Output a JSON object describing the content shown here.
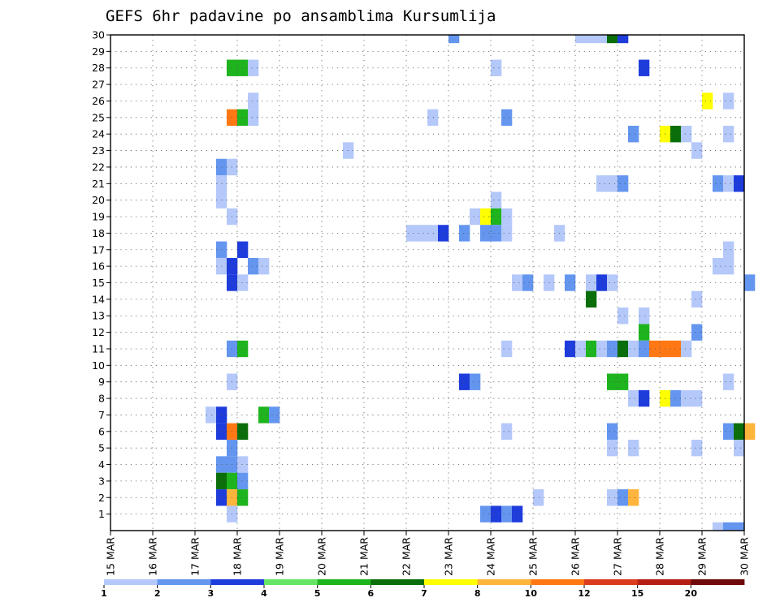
{
  "chart_data": {
    "type": "heatmap",
    "title": "GEFS 6hr padavine po ansamblima Kursumlija",
    "x_labels": [
      "15 MAR",
      "16 MAR",
      "17 MAR",
      "18 MAR",
      "19 MAR",
      "20 MAR",
      "21 MAR",
      "22 MAR",
      "23 MAR",
      "24 MAR",
      "25 MAR",
      "26 MAR",
      "27 MAR",
      "28 MAR",
      "29 MAR",
      "30 MAR"
    ],
    "x_range": [
      0,
      60
    ],
    "steps_per_day": 4,
    "y_labels": [
      "1",
      "2",
      "3",
      "4",
      "5",
      "6",
      "7",
      "8",
      "9",
      "10",
      "11",
      "12",
      "13",
      "14",
      "15",
      "16",
      "17",
      "18",
      "19",
      "20",
      "21",
      "22",
      "23",
      "24",
      "25",
      "26",
      "27",
      "28",
      "29",
      "30"
    ],
    "y_range": [
      0,
      30
    ],
    "grid": true,
    "legend": {
      "position": "bottom",
      "labels": [
        "1",
        "2",
        "3",
        "4",
        "5",
        "6",
        "7",
        "8",
        "10",
        "12",
        "15",
        "20"
      ],
      "colors": [
        "#b4c8fa",
        "#6496f0",
        "#1e3cdc",
        "#64e664",
        "#1eb41e",
        "#0a6e0a",
        "#ffff00",
        "#ffb43c",
        "#ff7814",
        "#dc3c1e",
        "#b41e14",
        "#6e0a0a"
      ]
    },
    "cells": [
      {
        "member": 30,
        "step": 32,
        "v": 2
      },
      {
        "member": 30,
        "step": 44,
        "v": 1
      },
      {
        "member": 30,
        "step": 45,
        "v": 1
      },
      {
        "member": 30,
        "step": 46,
        "v": 1
      },
      {
        "member": 30,
        "step": 47,
        "v": 6
      },
      {
        "member": 30,
        "step": 48,
        "v": 3
      },
      {
        "member": 28,
        "step": 11,
        "v": 5
      },
      {
        "member": 28,
        "step": 12,
        "v": 5
      },
      {
        "member": 28,
        "step": 13,
        "v": 1
      },
      {
        "member": 28,
        "step": 36,
        "v": 1
      },
      {
        "member": 28,
        "step": 50,
        "v": 3
      },
      {
        "member": 26,
        "step": 13,
        "v": 1
      },
      {
        "member": 26,
        "step": 56,
        "v": 7
      },
      {
        "member": 26,
        "step": 58,
        "v": 1
      },
      {
        "member": 25,
        "step": 11,
        "v": 10
      },
      {
        "member": 25,
        "step": 12,
        "v": 5
      },
      {
        "member": 25,
        "step": 13,
        "v": 1
      },
      {
        "member": 25,
        "step": 30,
        "v": 1
      },
      {
        "member": 25,
        "step": 37,
        "v": 2
      },
      {
        "member": 24,
        "step": 49,
        "v": 2
      },
      {
        "member": 24,
        "step": 52,
        "v": 7
      },
      {
        "member": 24,
        "step": 53,
        "v": 6
      },
      {
        "member": 24,
        "step": 54,
        "v": 1
      },
      {
        "member": 24,
        "step": 58,
        "v": 1
      },
      {
        "member": 23,
        "step": 22,
        "v": 1
      },
      {
        "member": 23,
        "step": 55,
        "v": 1
      },
      {
        "member": 22,
        "step": 10,
        "v": 2
      },
      {
        "member": 22,
        "step": 11,
        "v": 1
      },
      {
        "member": 21,
        "step": 10,
        "v": 1
      },
      {
        "member": 21,
        "step": 46,
        "v": 1
      },
      {
        "member": 21,
        "step": 47,
        "v": 1
      },
      {
        "member": 21,
        "step": 48,
        "v": 2
      },
      {
        "member": 21,
        "step": 57,
        "v": 2
      },
      {
        "member": 21,
        "step": 58,
        "v": 1
      },
      {
        "member": 21,
        "step": 59,
        "v": 3
      },
      {
        "member": 20,
        "step": 10,
        "v": 1
      },
      {
        "member": 20,
        "step": 36,
        "v": 1
      },
      {
        "member": 19,
        "step": 11,
        "v": 1
      },
      {
        "member": 19,
        "step": 34,
        "v": 1
      },
      {
        "member": 19,
        "step": 35,
        "v": 7
      },
      {
        "member": 19,
        "step": 36,
        "v": 5
      },
      {
        "member": 19,
        "step": 37,
        "v": 1
      },
      {
        "member": 18,
        "step": 28,
        "v": 1
      },
      {
        "member": 18,
        "step": 29,
        "v": 1
      },
      {
        "member": 18,
        "step": 30,
        "v": 1
      },
      {
        "member": 18,
        "step": 31,
        "v": 3
      },
      {
        "member": 18,
        "step": 33,
        "v": 2
      },
      {
        "member": 18,
        "step": 35,
        "v": 2
      },
      {
        "member": 18,
        "step": 36,
        "v": 2
      },
      {
        "member": 18,
        "step": 37,
        "v": 1
      },
      {
        "member": 18,
        "step": 42,
        "v": 1
      },
      {
        "member": 17,
        "step": 10,
        "v": 2
      },
      {
        "member": 17,
        "step": 12,
        "v": 3
      },
      {
        "member": 17,
        "step": 58,
        "v": 1
      },
      {
        "member": 16,
        "step": 10,
        "v": 1
      },
      {
        "member": 16,
        "step": 11,
        "v": 3
      },
      {
        "member": 16,
        "step": 13,
        "v": 2
      },
      {
        "member": 16,
        "step": 14,
        "v": 1
      },
      {
        "member": 16,
        "step": 57,
        "v": 1
      },
      {
        "member": 16,
        "step": 58,
        "v": 1
      },
      {
        "member": 15,
        "step": 11,
        "v": 3
      },
      {
        "member": 15,
        "step": 12,
        "v": 1
      },
      {
        "member": 15,
        "step": 38,
        "v": 1
      },
      {
        "member": 15,
        "step": 39,
        "v": 2
      },
      {
        "member": 15,
        "step": 41,
        "v": 1
      },
      {
        "member": 15,
        "step": 43,
        "v": 2
      },
      {
        "member": 15,
        "step": 45,
        "v": 1
      },
      {
        "member": 15,
        "step": 46,
        "v": 3
      },
      {
        "member": 15,
        "step": 47,
        "v": 1
      },
      {
        "member": 15,
        "step": 60,
        "v": 2
      },
      {
        "member": 14,
        "step": 45,
        "v": 6
      },
      {
        "member": 14,
        "step": 55,
        "v": 1
      },
      {
        "member": 13,
        "step": 48,
        "v": 1
      },
      {
        "member": 13,
        "step": 50,
        "v": 1
      },
      {
        "member": 12,
        "step": 50,
        "v": 5
      },
      {
        "member": 12,
        "step": 55,
        "v": 2
      },
      {
        "member": 11,
        "step": 11,
        "v": 2
      },
      {
        "member": 11,
        "step": 12,
        "v": 5
      },
      {
        "member": 11,
        "step": 37,
        "v": 1
      },
      {
        "member": 11,
        "step": 43,
        "v": 3
      },
      {
        "member": 11,
        "step": 44,
        "v": 1
      },
      {
        "member": 11,
        "step": 45,
        "v": 5
      },
      {
        "member": 11,
        "step": 46,
        "v": 1
      },
      {
        "member": 11,
        "step": 47,
        "v": 2
      },
      {
        "member": 11,
        "step": 48,
        "v": 6
      },
      {
        "member": 11,
        "step": 49,
        "v": 1
      },
      {
        "member": 11,
        "step": 50,
        "v": 2
      },
      {
        "member": 11,
        "step": 51,
        "v": 10
      },
      {
        "member": 11,
        "step": 52,
        "v": 10
      },
      {
        "member": 11,
        "step": 53,
        "v": 10
      },
      {
        "member": 11,
        "step": 54,
        "v": 1
      },
      {
        "member": 9,
        "step": 11,
        "v": 1
      },
      {
        "member": 9,
        "step": 33,
        "v": 3
      },
      {
        "member": 9,
        "step": 34,
        "v": 2
      },
      {
        "member": 9,
        "step": 47,
        "v": 5
      },
      {
        "member": 9,
        "step": 48,
        "v": 5
      },
      {
        "member": 9,
        "step": 58,
        "v": 1
      },
      {
        "member": 8,
        "step": 49,
        "v": 1
      },
      {
        "member": 8,
        "step": 50,
        "v": 3
      },
      {
        "member": 8,
        "step": 52,
        "v": 7
      },
      {
        "member": 8,
        "step": 53,
        "v": 2
      },
      {
        "member": 8,
        "step": 54,
        "v": 1
      },
      {
        "member": 8,
        "step": 55,
        "v": 1
      },
      {
        "member": 7,
        "step": 9,
        "v": 1
      },
      {
        "member": 7,
        "step": 10,
        "v": 3
      },
      {
        "member": 7,
        "step": 14,
        "v": 5
      },
      {
        "member": 7,
        "step": 15,
        "v": 2
      },
      {
        "member": 6,
        "step": 10,
        "v": 3
      },
      {
        "member": 6,
        "step": 11,
        "v": 10
      },
      {
        "member": 6,
        "step": 12,
        "v": 6
      },
      {
        "member": 6,
        "step": 37,
        "v": 1
      },
      {
        "member": 6,
        "step": 47,
        "v": 2
      },
      {
        "member": 6,
        "step": 58,
        "v": 2
      },
      {
        "member": 6,
        "step": 59,
        "v": 6
      },
      {
        "member": 6,
        "step": 60,
        "v": 8
      },
      {
        "member": 5,
        "step": 11,
        "v": 2
      },
      {
        "member": 5,
        "step": 47,
        "v": 1
      },
      {
        "member": 5,
        "step": 49,
        "v": 1
      },
      {
        "member": 5,
        "step": 55,
        "v": 1
      },
      {
        "member": 5,
        "step": 59,
        "v": 1
      },
      {
        "member": 4,
        "step": 10,
        "v": 2
      },
      {
        "member": 4,
        "step": 11,
        "v": 2
      },
      {
        "member": 4,
        "step": 12,
        "v": 1
      },
      {
        "member": 3,
        "step": 10,
        "v": 6
      },
      {
        "member": 3,
        "step": 11,
        "v": 5
      },
      {
        "member": 3,
        "step": 12,
        "v": 2
      },
      {
        "member": 2,
        "step": 10,
        "v": 3
      },
      {
        "member": 2,
        "step": 11,
        "v": 8
      },
      {
        "member": 2,
        "step": 12,
        "v": 5
      },
      {
        "member": 2,
        "step": 40,
        "v": 1
      },
      {
        "member": 2,
        "step": 47,
        "v": 1
      },
      {
        "member": 2,
        "step": 48,
        "v": 2
      },
      {
        "member": 2,
        "step": 49,
        "v": 8
      },
      {
        "member": 1,
        "step": 11,
        "v": 1
      },
      {
        "member": 1,
        "step": 35,
        "v": 2
      },
      {
        "member": 1,
        "step": 36,
        "v": 3
      },
      {
        "member": 1,
        "step": 37,
        "v": 2
      },
      {
        "member": 1,
        "step": 38,
        "v": 3
      },
      {
        "member": 0,
        "step": 57,
        "v": 1
      },
      {
        "member": 0,
        "step": 58,
        "v": 2
      },
      {
        "member": 0,
        "step": 59,
        "v": 2
      }
    ]
  }
}
